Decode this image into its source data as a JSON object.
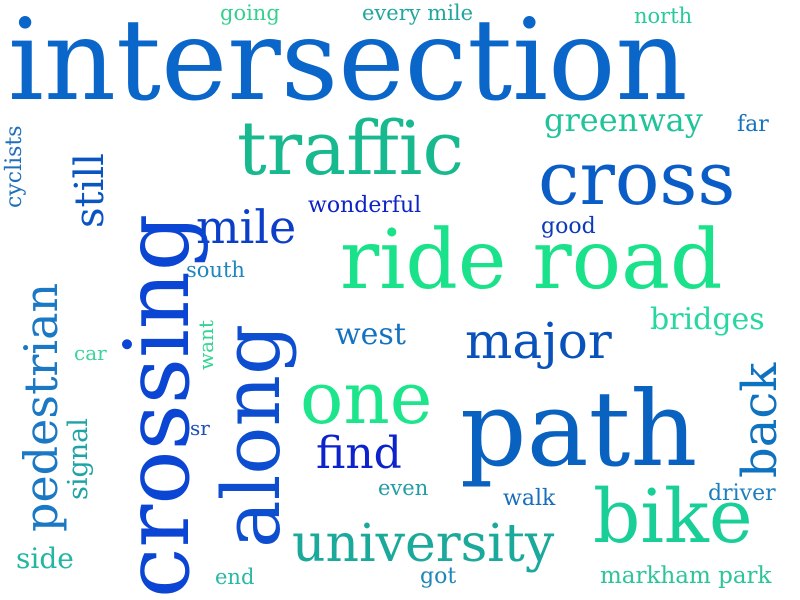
{
  "words": [
    {
      "key": "intersection",
      "text": "intersection",
      "color": "#0a66c8"
    },
    {
      "key": "crossing",
      "text": "crossing",
      "color": "#0b45d4"
    },
    {
      "key": "path",
      "text": "path",
      "color": "#0a62c0"
    },
    {
      "key": "ride_road",
      "text": "ride road",
      "color": "#1ae28a"
    },
    {
      "key": "cross",
      "text": "cross",
      "color": "#0a5cc6"
    },
    {
      "key": "traffic",
      "text": "traffic",
      "color": "#18b98e"
    },
    {
      "key": "along",
      "text": "along",
      "color": "#0d4ed0"
    },
    {
      "key": "one",
      "text": "one",
      "color": "#1de58c"
    },
    {
      "key": "bike",
      "text": "bike",
      "color": "#19cf97"
    },
    {
      "key": "university",
      "text": "university",
      "color": "#1aa99a"
    },
    {
      "key": "pedestrian",
      "text": "pedestrian",
      "color": "#1a78c4"
    },
    {
      "key": "major",
      "text": "major",
      "color": "#0a52bb"
    },
    {
      "key": "mile",
      "text": "mile",
      "color": "#0b3fc8"
    },
    {
      "key": "find",
      "text": "find",
      "color": "#0b22cc"
    },
    {
      "key": "back",
      "text": "back",
      "color": "#0d72c0"
    },
    {
      "key": "still",
      "text": "still",
      "color": "#0a55c2"
    },
    {
      "key": "greenway",
      "text": "greenway",
      "color": "#21c39a"
    },
    {
      "key": "bridges",
      "text": "bridges",
      "color": "#27d7a0"
    },
    {
      "key": "west",
      "text": "west",
      "color": "#1473c0"
    },
    {
      "key": "signal",
      "text": "signal",
      "color": "#1ea3a6"
    },
    {
      "key": "side",
      "text": "side",
      "color": "#23b6a3"
    },
    {
      "key": "markham_park",
      "text": "markham park",
      "color": "#2ec49a"
    },
    {
      "key": "driver",
      "text": "driver",
      "color": "#1c7ebd"
    },
    {
      "key": "walk",
      "text": "walk",
      "color": "#1a6dbd"
    },
    {
      "key": "even",
      "text": "even",
      "color": "#239ca6"
    },
    {
      "key": "got",
      "text": "got",
      "color": "#1f86b8"
    },
    {
      "key": "end",
      "text": "end",
      "color": "#28b8a4"
    },
    {
      "key": "wonderful",
      "text": "wonderful",
      "color": "#0d24c5"
    },
    {
      "key": "good",
      "text": "good",
      "color": "#0b3bb8"
    },
    {
      "key": "south",
      "text": "south",
      "color": "#1e86bc"
    },
    {
      "key": "going",
      "text": "going",
      "color": "#35d08f"
    },
    {
      "key": "every_mile",
      "text": "every mile",
      "color": "#21a69e"
    },
    {
      "key": "north",
      "text": "north",
      "color": "#2ac99c"
    },
    {
      "key": "far",
      "text": "far",
      "color": "#1772bc"
    },
    {
      "key": "cyclists",
      "text": "cyclists",
      "color": "#1f6fba"
    },
    {
      "key": "car",
      "text": "car",
      "color": "#3cd49a"
    },
    {
      "key": "want",
      "text": "want",
      "color": "#34d493"
    },
    {
      "key": "sr",
      "text": "sr",
      "color": "#1b4fb9"
    }
  ]
}
